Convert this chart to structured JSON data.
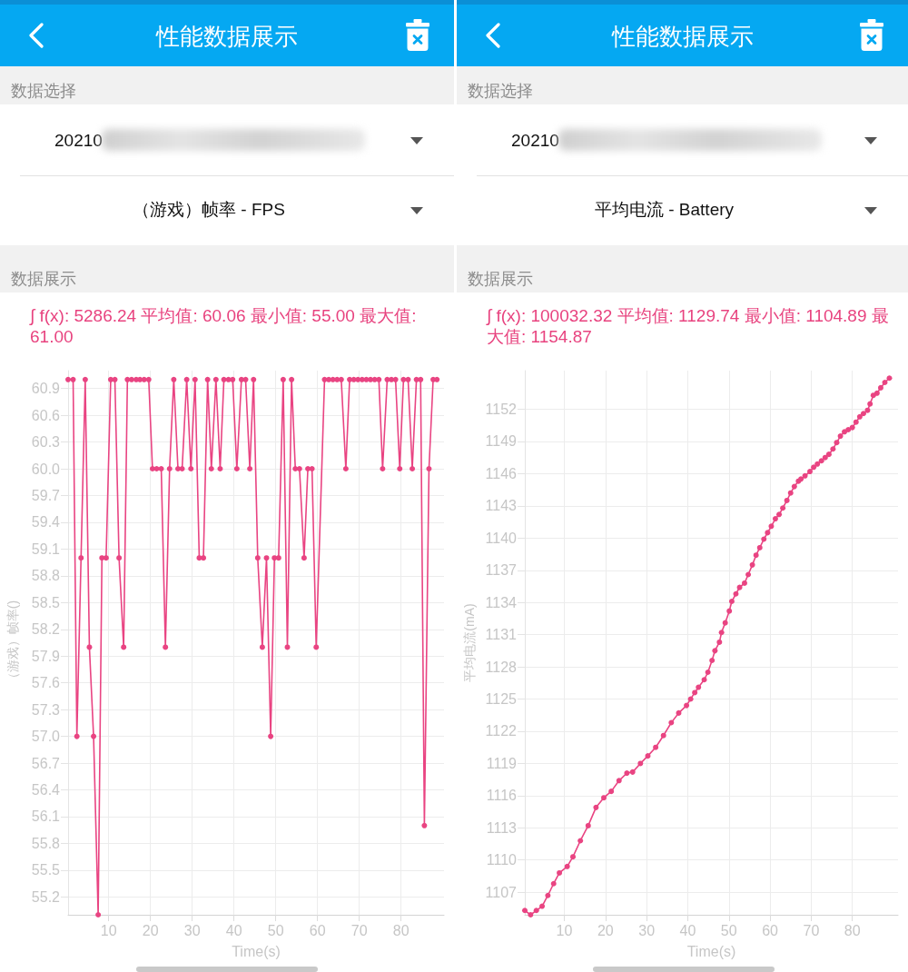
{
  "chart_data": [
    {
      "type": "line",
      "title": "性能数据展示",
      "subtitle": "∫ f(x): 5286.24 平均值: 60.06 最小值: 55.00 最大值: 61.00",
      "annotations": [
        "数据选择",
        "20210",
        "（游戏）帧率 - FPS",
        "数据展示"
      ],
      "xlabel": "Time(s)",
      "ylabel": "（游戏）帧率()",
      "x": [
        0.3,
        1.5,
        2.4,
        3.4,
        4.4,
        5.4,
        6.4,
        7.5,
        8.4,
        9.4,
        10.5,
        11.5,
        12.5,
        13.6,
        14.5,
        15.5,
        16.6,
        17.5,
        18.5,
        19.6,
        20.5,
        21.5,
        22.6,
        23.6,
        24.6,
        25.6,
        26.6,
        27.6,
        28.7,
        29.7,
        30.7,
        31.7,
        32.7,
        33.7,
        34.6,
        35.7,
        36.7,
        37.6,
        38.7,
        39.7,
        40.7,
        41.8,
        42.8,
        43.8,
        44.7,
        45.7,
        46.8,
        47.8,
        48.8,
        49.7,
        50.7,
        51.8,
        52.8,
        53.8,
        54.7,
        55.7,
        56.8,
        57.7,
        58.7,
        59.7,
        61.7,
        62.7,
        63.7,
        64.7,
        65.7,
        66.8,
        67.7,
        68.7,
        69.7,
        70.7,
        71.7,
        72.7,
        73.7,
        74.7,
        75.6,
        76.7,
        77.7,
        78.7,
        79.7,
        80.6,
        81.7,
        82.7,
        83.7,
        84.7,
        85.6,
        86.7,
        87.7,
        88.6
      ],
      "series": [
        {
          "color": "#e94482",
          "values": [
            61,
            61,
            57,
            59,
            61,
            58,
            57,
            55,
            59,
            59,
            61,
            61,
            59,
            58,
            61,
            61,
            61,
            61,
            61,
            61,
            60,
            60,
            60,
            58,
            60,
            61,
            60,
            60,
            61,
            60,
            61,
            59,
            59,
            61,
            60,
            61,
            60,
            61,
            61,
            61,
            60,
            61,
            61,
            60,
            61,
            59,
            58,
            59,
            57,
            59,
            59,
            61,
            58,
            61,
            60,
            60,
            59,
            60,
            60,
            58,
            61,
            61,
            61,
            61,
            61,
            60,
            61,
            61,
            61,
            61,
            61,
            61,
            61,
            61,
            60,
            61,
            61,
            61,
            60,
            61,
            61,
            60,
            61,
            61,
            56,
            60,
            61,
            61
          ]
        }
      ],
      "xlim": [
        0.3,
        90.3
      ],
      "xticks": [
        10,
        20,
        30,
        40,
        50,
        60,
        70,
        80
      ],
      "ylim": [
        55,
        61.1
      ],
      "yticks": [
        55.2,
        55.5,
        55.8,
        56.1,
        56.4,
        56.7,
        {
          "value": 57,
          "label": "57.0"
        },
        57.3,
        57.6,
        57.9,
        58.2,
        58.5,
        58.8,
        59.1,
        59.4,
        59.7,
        {
          "value": 60,
          "label": "60.0"
        },
        60.3,
        60.6,
        60.9
      ],
      "grid": true,
      "marker": "circle"
    },
    {
      "type": "line",
      "title": "性能数据展示",
      "subtitle": "∫ f(x): 100032.32 平均值: 1129.74 最小值: 1104.89 最大值: 1154.87",
      "annotations": [
        "数据选择",
        "20210",
        "平均电流 - Battery",
        "数据展示"
      ],
      "xlabel": "Time(s)",
      "ylabel": "平均电流(mA)",
      "x": [
        0.4,
        1.8,
        3.2,
        4.6,
        6.0,
        7.4,
        8.8,
        10.7,
        12.1,
        13.9,
        15.8,
        17.7,
        19.6,
        21.4,
        23.3,
        25.2,
        26.6,
        28.5,
        30.3,
        32.2,
        34.1,
        36.0,
        37.8,
        39.7,
        40.7,
        41.7,
        42.6,
        44.0,
        44.9,
        45.9,
        46.6,
        47.7,
        48.2,
        49.1,
        50.1,
        50.7,
        51.7,
        52.6,
        53.8,
        54.7,
        55.7,
        56.6,
        57.5,
        58.5,
        59.4,
        60.3,
        61.3,
        62.2,
        63.1,
        64.1,
        65.0,
        65.9,
        66.9,
        67.5,
        68.5,
        69.7,
        70.6,
        71.5,
        72.5,
        73.4,
        74.3,
        75.3,
        76.2,
        77.1,
        78.1,
        79.0,
        80.0,
        80.9,
        81.8,
        82.7,
        83.7,
        84.3,
        85.1,
        86.0,
        86.9,
        87.9,
        89.0
      ],
      "series": [
        {
          "color": "#e94482",
          "values": [
            1105.3,
            1104.9,
            1105.3,
            1105.7,
            1106.7,
            1107.8,
            1108.8,
            1109.4,
            1110.3,
            1111.8,
            1113.2,
            1114.9,
            1115.8,
            1116.4,
            1117.4,
            1118.1,
            1118.2,
            1119.0,
            1119.7,
            1120.5,
            1121.6,
            1122.8,
            1123.7,
            1124.4,
            1125.0,
            1125.6,
            1126.1,
            1126.8,
            1127.5,
            1128.6,
            1129.5,
            1130.3,
            1131.2,
            1132.1,
            1133.2,
            1134.1,
            1134.8,
            1135.4,
            1135.8,
            1136.6,
            1137.5,
            1138.4,
            1139.1,
            1139.9,
            1140.5,
            1141.1,
            1141.8,
            1142.2,
            1142.8,
            1143.5,
            1144.2,
            1144.8,
            1145.3,
            1145.5,
            1145.8,
            1146.2,
            1146.6,
            1146.9,
            1147.2,
            1147.5,
            1147.8,
            1148.3,
            1148.9,
            1149.5,
            1149.9,
            1150.1,
            1150.3,
            1150.8,
            1151.3,
            1151.6,
            1151.9,
            1152.5,
            1153.3,
            1153.5,
            1154.0,
            1154.5,
            1154.9
          ]
        }
      ],
      "xlim": [
        0.4,
        91.1
      ],
      "xticks": [
        10,
        20,
        30,
        40,
        50,
        60,
        70,
        80
      ],
      "ylim": [
        1104.9,
        1155.6
      ],
      "yticks": [
        1107,
        1110,
        1113,
        1116,
        1119,
        1122,
        1125,
        1128,
        1131,
        1134,
        1137,
        1140,
        1143,
        1146,
        1149,
        1152
      ],
      "grid": true,
      "marker": "circle"
    }
  ]
}
